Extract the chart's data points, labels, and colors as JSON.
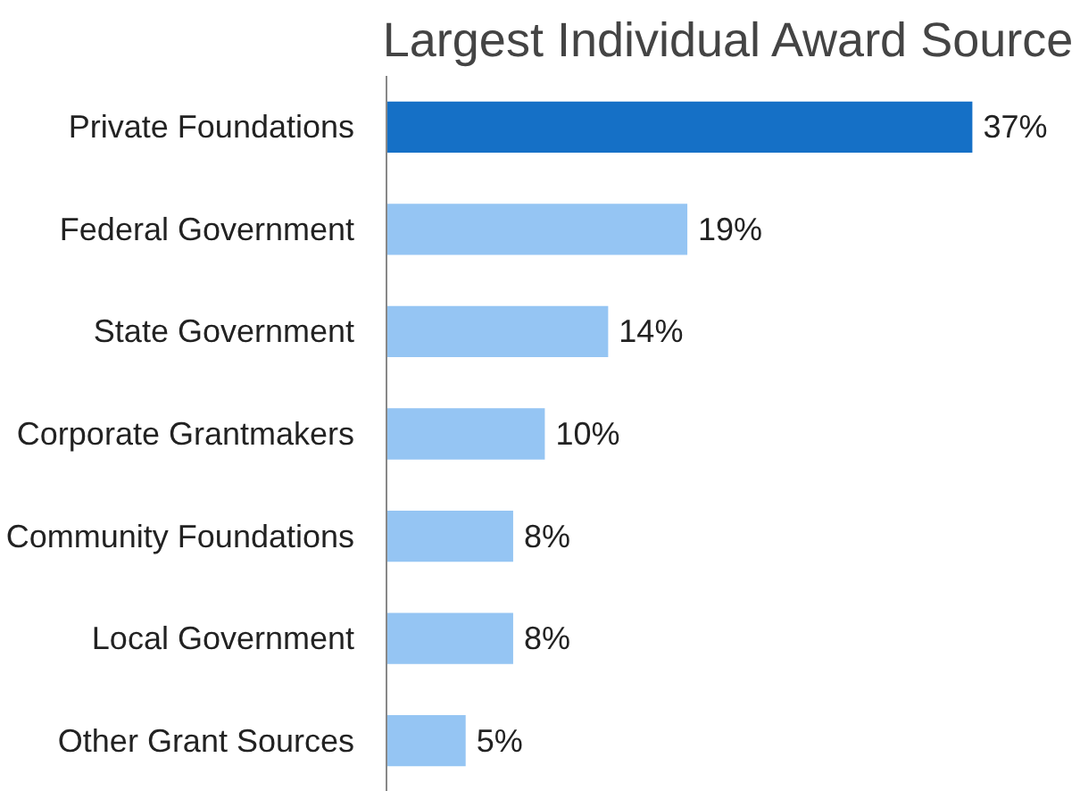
{
  "chart_data": {
    "type": "bar",
    "orientation": "horizontal",
    "title": "Largest Individual Award Source",
    "categories": [
      "Private Foundations",
      "Federal Government",
      "State Government",
      "Corporate Grantmakers",
      "Community Foundations",
      "Local Government",
      "Other Grant Sources"
    ],
    "values": [
      37,
      19,
      14,
      10,
      8,
      8,
      5
    ],
    "colors": [
      "#1570c6",
      "#95c5f3",
      "#95c5f3",
      "#95c5f3",
      "#95c5f3",
      "#95c5f3",
      "#95c5f3"
    ],
    "value_labels": [
      "37%",
      "19%",
      "14%",
      "10%",
      "8%",
      "8%",
      "5%"
    ],
    "grid": false
  }
}
